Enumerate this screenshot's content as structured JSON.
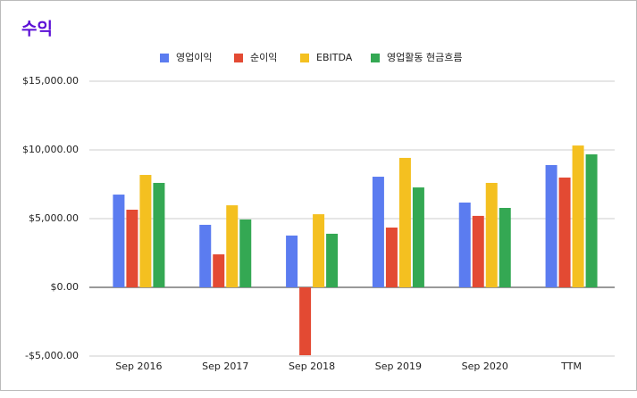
{
  "chart_data": {
    "type": "bar",
    "title": "수익",
    "categories": [
      "Sep 2016",
      "Sep 2017",
      "Sep 2018",
      "Sep 2019",
      "Sep 2020",
      "TTM"
    ],
    "series": [
      {
        "name": "영업이익",
        "color": "#5b7cf0",
        "values": [
          6750,
          4550,
          3770,
          8050,
          6170,
          8900
        ]
      },
      {
        "name": "순이익",
        "color": "#e34a33",
        "values": [
          5650,
          2400,
          -4940,
          4350,
          5200,
          7990
        ]
      },
      {
        "name": "EBITDA",
        "color": "#f4c020",
        "values": [
          8180,
          5970,
          5320,
          9420,
          7600,
          10320
        ]
      },
      {
        "name": "영업활동 현금흐름",
        "color": "#34a853",
        "values": [
          7600,
          4940,
          3900,
          7270,
          5780,
          9680
        ]
      }
    ],
    "ylim": [
      -5000,
      15000
    ],
    "yticks": [
      {
        "value": -5000,
        "label": "-$5,000.00"
      },
      {
        "value": 0,
        "label": "$0.00"
      },
      {
        "value": 5000,
        "label": "$5,000.00"
      },
      {
        "value": 10000,
        "label": "$10,000.00"
      },
      {
        "value": 15000,
        "label": "$15,000.00"
      }
    ],
    "grid": true,
    "legend": "top"
  }
}
